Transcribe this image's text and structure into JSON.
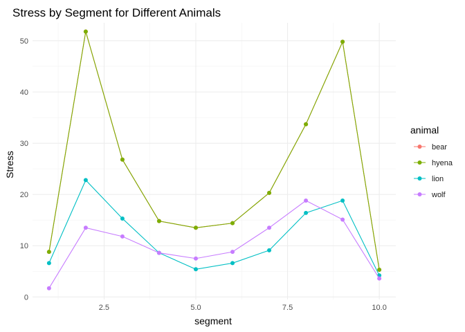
{
  "chart_data": {
    "type": "line",
    "title": "Stress by Segment for Different Animals",
    "xlabel": "segment",
    "ylabel": "Stress",
    "xlim": [
      0.55,
      10.45
    ],
    "ylim": [
      -0.5,
      53.5
    ],
    "x_ticks": [
      2.5,
      5.0,
      7.5,
      10.0
    ],
    "x_tick_labels": [
      "2.5",
      "5.0",
      "7.5",
      "10.0"
    ],
    "y_ticks": [
      0,
      10,
      20,
      30,
      40,
      50
    ],
    "y_tick_labels": [
      "0",
      "10",
      "20",
      "30",
      "40",
      "50"
    ],
    "grid": true,
    "legend_title": "animal",
    "legend_position": "right",
    "x": [
      1,
      2,
      3,
      4,
      5,
      6,
      7,
      8,
      9,
      10
    ],
    "series": [
      {
        "name": "bear",
        "color": "#F8766D",
        "values": [
          8.8,
          51.8,
          26.8,
          14.8,
          13.5,
          14.4,
          20.3,
          33.7,
          49.8,
          5.3
        ]
      },
      {
        "name": "hyena",
        "color": "#7CAE00",
        "values": [
          8.8,
          51.8,
          26.8,
          14.8,
          13.5,
          14.4,
          20.3,
          33.7,
          49.8,
          5.3
        ]
      },
      {
        "name": "lion",
        "color": "#00BFC4",
        "values": [
          6.6,
          22.8,
          15.3,
          8.6,
          5.4,
          6.6,
          9.1,
          16.4,
          18.8,
          4.2
        ]
      },
      {
        "name": "wolf",
        "color": "#C77CFF",
        "values": [
          1.7,
          13.5,
          11.8,
          8.6,
          7.5,
          8.8,
          13.5,
          18.8,
          15.1,
          3.6
        ]
      }
    ]
  }
}
